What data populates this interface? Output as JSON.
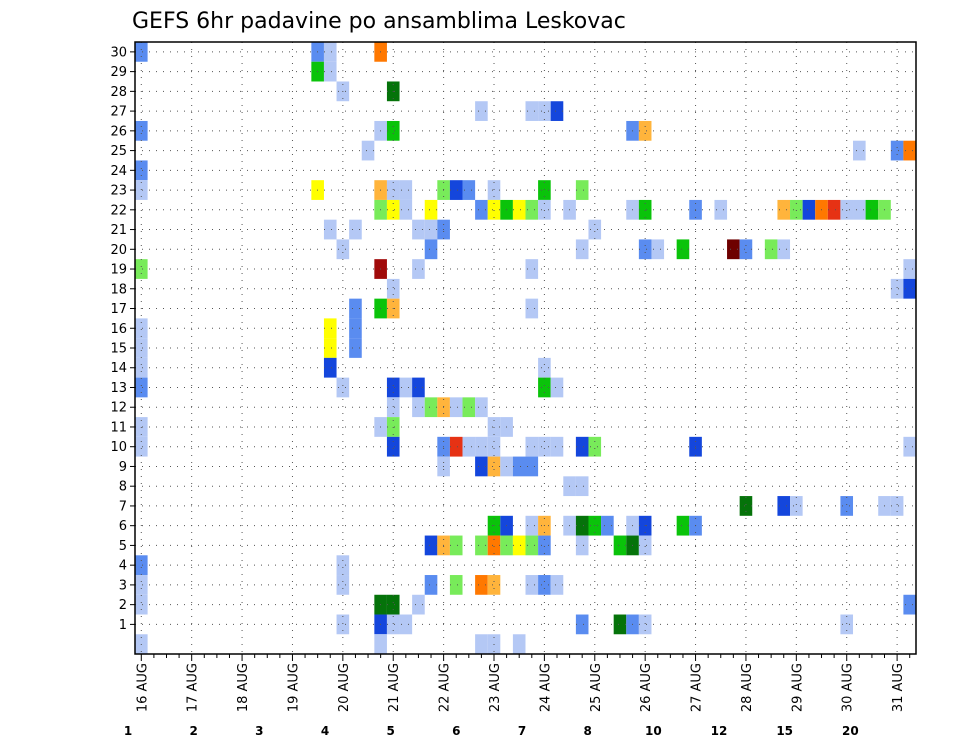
{
  "chart_data": {
    "type": "heatmap",
    "title": "GEFS 6hr padavine po ansamblima Leskovac",
    "x_tick_labels": [
      "16 AUG",
      "17 AUG",
      "18 AUG",
      "19 AUG",
      "20 AUG",
      "21 AUG",
      "22 AUG",
      "23 AUG",
      "24 AUG",
      "25 AUG",
      "26 AUG",
      "27 AUG",
      "28 AUG",
      "29 AUG",
      "30 AUG",
      "31 AUG"
    ],
    "x_range": [
      0,
      61
    ],
    "y_tick_labels": [
      "1",
      "2",
      "3",
      "4",
      "5",
      "6",
      "7",
      "8",
      "9",
      "10",
      "11",
      "12",
      "13",
      "14",
      "15",
      "16",
      "17",
      "18",
      "19",
      "20",
      "21",
      "22",
      "23",
      "24",
      "25",
      "26",
      "27",
      "28",
      "29",
      "30"
    ],
    "y_range": [
      0,
      30
    ],
    "grid": true,
    "colorbar": {
      "labels": [
        "1",
        "2",
        "3",
        "4",
        "5",
        "6",
        "7",
        "8",
        "10",
        "12",
        "15",
        "20"
      ],
      "colors": [
        "#b4c8f5",
        "#5a8cf0",
        "#1446dc",
        "#78eb5a",
        "#0ac30a",
        "#05730a",
        "#ffff00",
        "#ffb43c",
        "#ff7800",
        "#e63214",
        "#a00a0a",
        "#6e0000"
      ]
    },
    "cells": [
      [
        0,
        30,
        2
      ],
      [
        14,
        30,
        2
      ],
      [
        15,
        30,
        1
      ],
      [
        19,
        30,
        9
      ],
      [
        14,
        29,
        5
      ],
      [
        15,
        29,
        1
      ],
      [
        16,
        28,
        1
      ],
      [
        20,
        28,
        6
      ],
      [
        27,
        27,
        1
      ],
      [
        31,
        27,
        1
      ],
      [
        32,
        27,
        1
      ],
      [
        33,
        27,
        3
      ],
      [
        0,
        26,
        2
      ],
      [
        19,
        26,
        1
      ],
      [
        20,
        26,
        5
      ],
      [
        39,
        26,
        2
      ],
      [
        40,
        26,
        8
      ],
      [
        18,
        25,
        1
      ],
      [
        57,
        25,
        1
      ],
      [
        60,
        25,
        2
      ],
      [
        61,
        25,
        9
      ],
      [
        0,
        24,
        2
      ],
      [
        0,
        23,
        1
      ],
      [
        14,
        23,
        7
      ],
      [
        19,
        23,
        8
      ],
      [
        20,
        23,
        1
      ],
      [
        21,
        23,
        1
      ],
      [
        24,
        23,
        4
      ],
      [
        25,
        23,
        3
      ],
      [
        26,
        23,
        2
      ],
      [
        28,
        23,
        1
      ],
      [
        32,
        23,
        5
      ],
      [
        35,
        23,
        4
      ],
      [
        19,
        22,
        4
      ],
      [
        20,
        22,
        7
      ],
      [
        21,
        22,
        1
      ],
      [
        23,
        22,
        7
      ],
      [
        27,
        22,
        2
      ],
      [
        28,
        22,
        7
      ],
      [
        29,
        22,
        5
      ],
      [
        30,
        22,
        7
      ],
      [
        31,
        22,
        4
      ],
      [
        32,
        22,
        1
      ],
      [
        34,
        22,
        1
      ],
      [
        39,
        22,
        1
      ],
      [
        40,
        22,
        5
      ],
      [
        44,
        22,
        2
      ],
      [
        46,
        22,
        1
      ],
      [
        51,
        22,
        8
      ],
      [
        52,
        22,
        4
      ],
      [
        53,
        22,
        3
      ],
      [
        54,
        22,
        9
      ],
      [
        55,
        22,
        10
      ],
      [
        56,
        22,
        1
      ],
      [
        57,
        22,
        1
      ],
      [
        58,
        22,
        5
      ],
      [
        59,
        22,
        4
      ],
      [
        15,
        21,
        1
      ],
      [
        17,
        21,
        1
      ],
      [
        22,
        21,
        1
      ],
      [
        23,
        21,
        1
      ],
      [
        24,
        21,
        2
      ],
      [
        36,
        21,
        1
      ],
      [
        16,
        20,
        1
      ],
      [
        23,
        20,
        2
      ],
      [
        35,
        20,
        1
      ],
      [
        40,
        20,
        2
      ],
      [
        41,
        20,
        1
      ],
      [
        43,
        20,
        5
      ],
      [
        47,
        20,
        12
      ],
      [
        48,
        20,
        2
      ],
      [
        50,
        20,
        4
      ],
      [
        51,
        20,
        1
      ],
      [
        0,
        19,
        4
      ],
      [
        19,
        19,
        11
      ],
      [
        22,
        19,
        1
      ],
      [
        31,
        19,
        1
      ],
      [
        61,
        19,
        1
      ],
      [
        20,
        18,
        1
      ],
      [
        60,
        18,
        1
      ],
      [
        61,
        18,
        3
      ],
      [
        17,
        17,
        2
      ],
      [
        19,
        17,
        5
      ],
      [
        20,
        17,
        8
      ],
      [
        31,
        17,
        1
      ],
      [
        0,
        16,
        1
      ],
      [
        15,
        16,
        7
      ],
      [
        17,
        16,
        2
      ],
      [
        0,
        15,
        1
      ],
      [
        15,
        15,
        7
      ],
      [
        17,
        15,
        2
      ],
      [
        0,
        14,
        1
      ],
      [
        15,
        14,
        3
      ],
      [
        32,
        14,
        1
      ],
      [
        0,
        13,
        2
      ],
      [
        16,
        13,
        1
      ],
      [
        20,
        13,
        3
      ],
      [
        21,
        13,
        1
      ],
      [
        22,
        13,
        3
      ],
      [
        32,
        13,
        5
      ],
      [
        33,
        13,
        1
      ],
      [
        20,
        12,
        1
      ],
      [
        22,
        12,
        1
      ],
      [
        23,
        12,
        4
      ],
      [
        24,
        12,
        8
      ],
      [
        25,
        12,
        1
      ],
      [
        26,
        12,
        4
      ],
      [
        27,
        12,
        1
      ],
      [
        0,
        11,
        1
      ],
      [
        19,
        11,
        1
      ],
      [
        20,
        11,
        4
      ],
      [
        28,
        11,
        1
      ],
      [
        29,
        11,
        1
      ],
      [
        0,
        10,
        1
      ],
      [
        20,
        10,
        3
      ],
      [
        24,
        10,
        2
      ],
      [
        25,
        10,
        10
      ],
      [
        26,
        10,
        1
      ],
      [
        27,
        10,
        1
      ],
      [
        28,
        10,
        1
      ],
      [
        31,
        10,
        1
      ],
      [
        32,
        10,
        1
      ],
      [
        33,
        10,
        1
      ],
      [
        35,
        10,
        3
      ],
      [
        36,
        10,
        4
      ],
      [
        44,
        10,
        3
      ],
      [
        61,
        10,
        1
      ],
      [
        24,
        9,
        1
      ],
      [
        27,
        9,
        3
      ],
      [
        28,
        9,
        8
      ],
      [
        29,
        9,
        1
      ],
      [
        30,
        9,
        2
      ],
      [
        31,
        9,
        2
      ],
      [
        34,
        8,
        1
      ],
      [
        35,
        8,
        1
      ],
      [
        48,
        7,
        6
      ],
      [
        51,
        7,
        3
      ],
      [
        52,
        7,
        1
      ],
      [
        56,
        7,
        2
      ],
      [
        59,
        7,
        1
      ],
      [
        60,
        7,
        1
      ],
      [
        28,
        6,
        5
      ],
      [
        29,
        6,
        3
      ],
      [
        31,
        6,
        1
      ],
      [
        32,
        6,
        8
      ],
      [
        34,
        6,
        1
      ],
      [
        35,
        6,
        6
      ],
      [
        36,
        6,
        5
      ],
      [
        37,
        6,
        2
      ],
      [
        39,
        6,
        1
      ],
      [
        40,
        6,
        3
      ],
      [
        43,
        6,
        5
      ],
      [
        44,
        6,
        2
      ],
      [
        23,
        5,
        3
      ],
      [
        24,
        5,
        8
      ],
      [
        25,
        5,
        4
      ],
      [
        27,
        5,
        4
      ],
      [
        28,
        5,
        9
      ],
      [
        29,
        5,
        4
      ],
      [
        30,
        5,
        7
      ],
      [
        31,
        5,
        4
      ],
      [
        32,
        5,
        2
      ],
      [
        35,
        5,
        1
      ],
      [
        38,
        5,
        5
      ],
      [
        39,
        5,
        6
      ],
      [
        40,
        5,
        1
      ],
      [
        0,
        4,
        2
      ],
      [
        16,
        4,
        1
      ],
      [
        0,
        3,
        1
      ],
      [
        16,
        3,
        1
      ],
      [
        23,
        3,
        2
      ],
      [
        25,
        3,
        4
      ],
      [
        27,
        3,
        9
      ],
      [
        28,
        3,
        8
      ],
      [
        31,
        3,
        1
      ],
      [
        32,
        3,
        2
      ],
      [
        33,
        3,
        1
      ],
      [
        0,
        2,
        1
      ],
      [
        19,
        2,
        6
      ],
      [
        20,
        2,
        6
      ],
      [
        22,
        2,
        1
      ],
      [
        61,
        2,
        2
      ],
      [
        16,
        1,
        1
      ],
      [
        19,
        1,
        3
      ],
      [
        20,
        1,
        1
      ],
      [
        21,
        1,
        1
      ],
      [
        35,
        1,
        2
      ],
      [
        38,
        1,
        6
      ],
      [
        39,
        1,
        2
      ],
      [
        40,
        1,
        1
      ],
      [
        56,
        1,
        1
      ],
      [
        0,
        0,
        1
      ],
      [
        19,
        0,
        1
      ],
      [
        27,
        0,
        1
      ],
      [
        28,
        0,
        1
      ],
      [
        30,
        0,
        1
      ]
    ]
  }
}
